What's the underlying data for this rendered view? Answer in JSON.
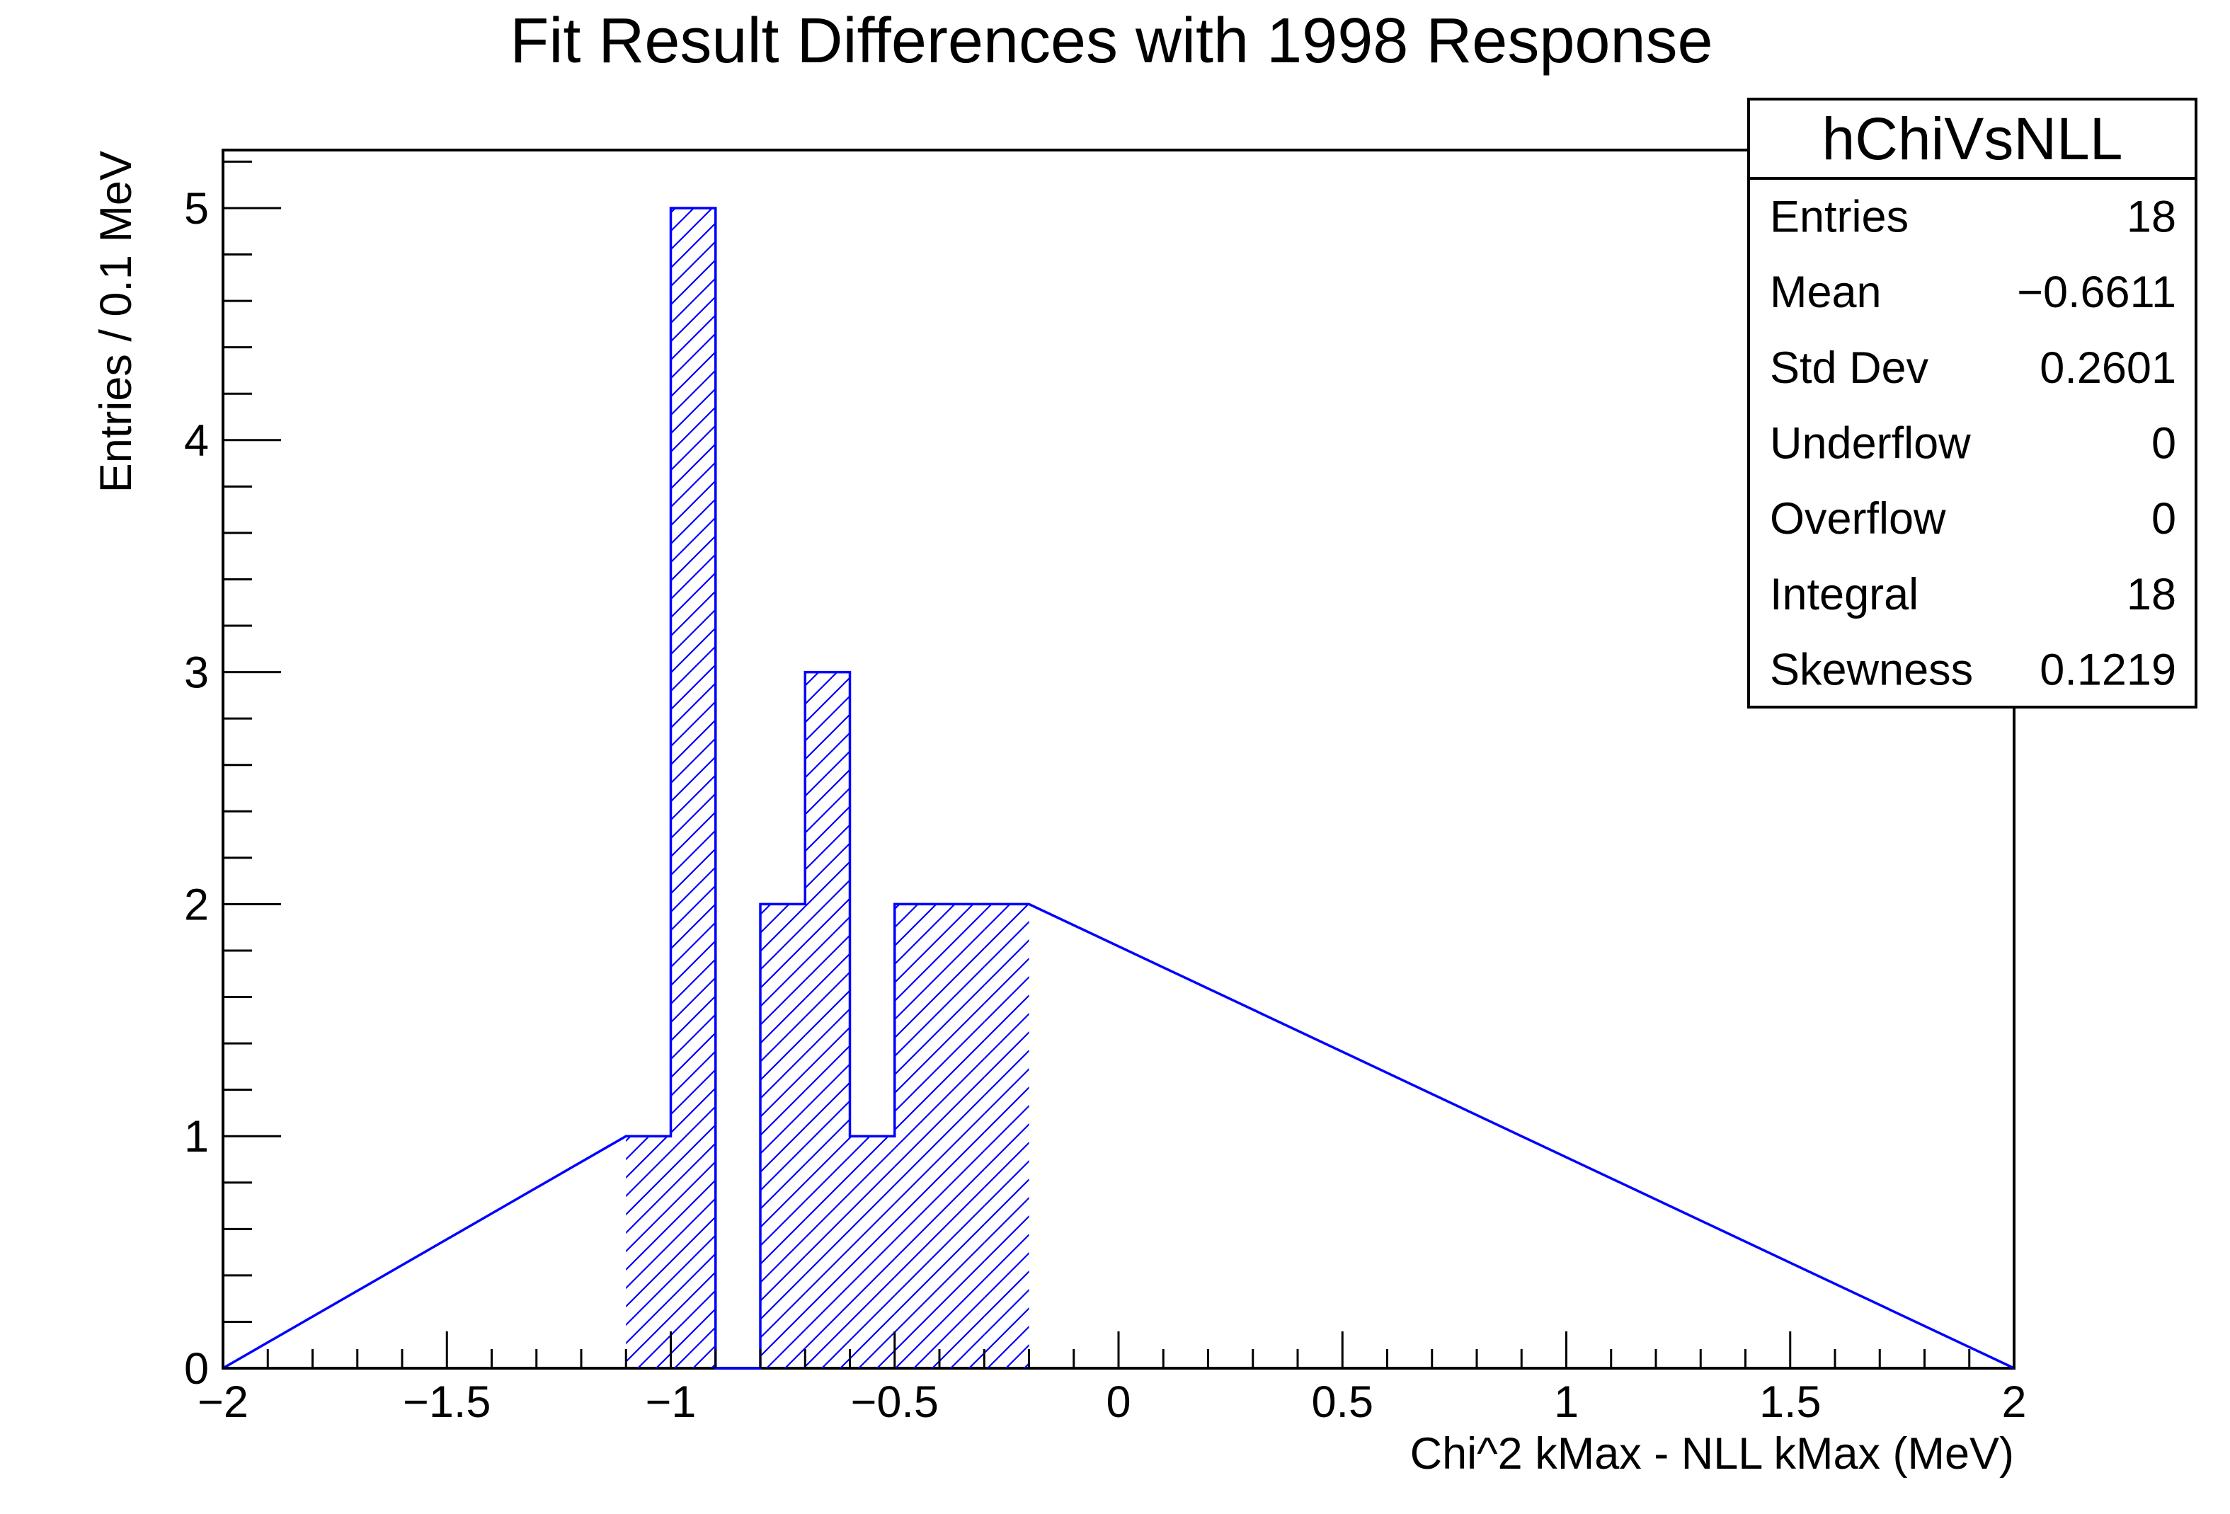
{
  "chart_data": {
    "type": "bar",
    "histogram": true,
    "title": "Fit Result Differences with 1998 Response",
    "xlabel": "Chi^2 kMax - NLL kMax (MeV)",
    "ylabel": "Entries / 0.1 MeV",
    "xlim": [
      -2,
      2
    ],
    "ylim": [
      0,
      5.25
    ],
    "bin_width": 0.1,
    "x_ticks": [
      -2,
      -1.5,
      -1,
      -0.5,
      0,
      0.5,
      1,
      1.5,
      2
    ],
    "x_tick_labels": [
      "−2",
      "−1.5",
      "−1",
      "−0.5",
      "0",
      "0.5",
      "1",
      "1.5",
      "2"
    ],
    "y_ticks": [
      0,
      1,
      2,
      3,
      4,
      5
    ],
    "y_tick_labels": [
      "0",
      "1",
      "2",
      "3",
      "4",
      "5"
    ],
    "bins": [
      {
        "low": -1.1,
        "high": -1.0,
        "value": 1
      },
      {
        "low": -1.0,
        "high": -0.9,
        "value": 5
      },
      {
        "low": -0.9,
        "high": -0.8,
        "value": 0
      },
      {
        "low": -0.8,
        "high": -0.7,
        "value": 2
      },
      {
        "low": -0.7,
        "high": -0.6,
        "value": 3
      },
      {
        "low": -0.6,
        "high": -0.5,
        "value": 1
      },
      {
        "low": -0.5,
        "high": -0.4,
        "value": 2
      },
      {
        "low": -0.4,
        "high": -0.3,
        "value": 2
      },
      {
        "low": -0.3,
        "high": -0.2,
        "value": 2
      }
    ],
    "fill_pattern": "diagonal-hatch",
    "grid": false,
    "colors": {
      "series": "#0000ff",
      "axis": "#000000",
      "background": "#ffffff"
    },
    "stats_box": {
      "name": "hChiVsNLL",
      "placement": "top-right",
      "rows": [
        {
          "label": "Entries",
          "value": "18"
        },
        {
          "label": "Mean",
          "value": "−0.6611"
        },
        {
          "label": "Std Dev",
          "value": "0.2601"
        },
        {
          "label": "Underflow",
          "value": "0"
        },
        {
          "label": "Overflow",
          "value": "0"
        },
        {
          "label": "Integral",
          "value": "18"
        },
        {
          "label": "Skewness",
          "value": "0.1219"
        }
      ]
    }
  }
}
